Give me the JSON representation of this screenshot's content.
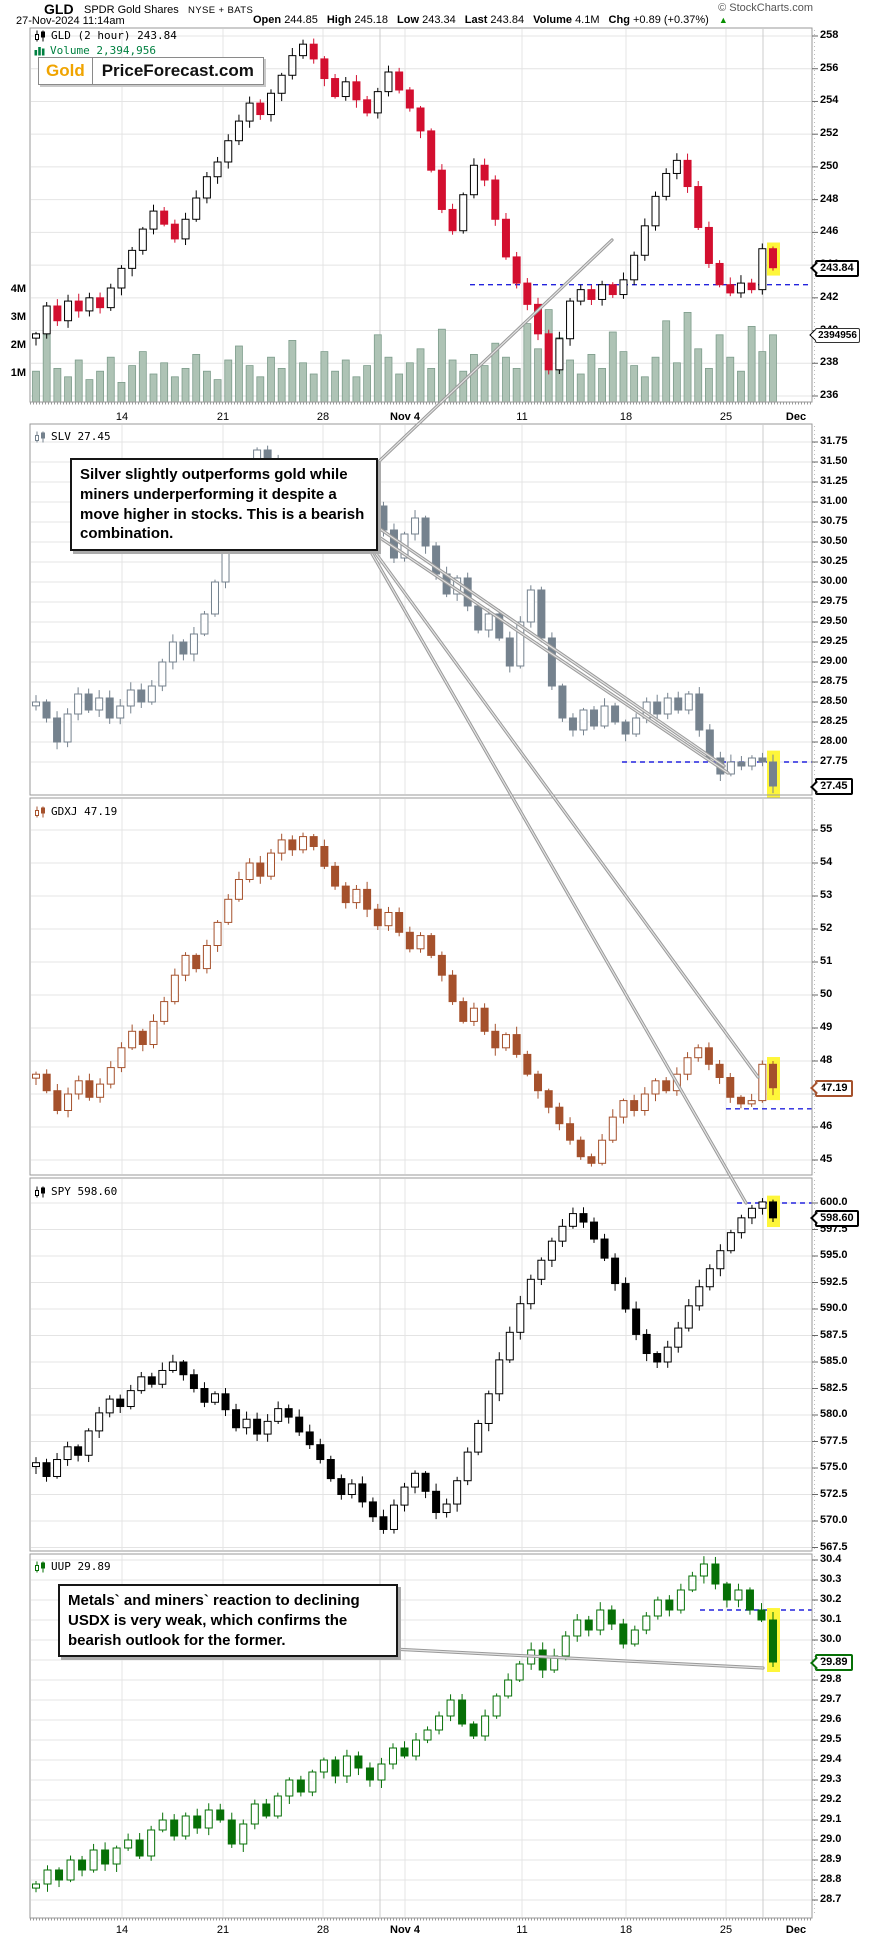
{
  "header": {
    "symbol": "GLD",
    "name": "SPDR Gold Shares",
    "exchange": "NYSE + BATS",
    "copyright": "© StockCharts.com",
    "datetime": "27-Nov-2024 11:14am",
    "quote": [
      {
        "label": "Open",
        "value": "244.85"
      },
      {
        "label": "High",
        "value": "245.18"
      },
      {
        "label": "Low",
        "value": "243.34"
      },
      {
        "label": "Last",
        "value": "243.84"
      },
      {
        "label": "Volume",
        "value": "4.1M"
      },
      {
        "label": "Chg",
        "value": "+0.89 (+0.37%)"
      }
    ],
    "chg_direction": "▲",
    "up_color": "#089000"
  },
  "logo": {
    "word1": "Gold",
    "word2": "PriceForecast.com",
    "word1_color": "#f0a400"
  },
  "annotations": {
    "box1": "Silver slightly outperforms gold while miners underperforming it despite a move higher in stocks. This is a bearish combination.",
    "box2": "Metals` and miners` reaction to declining USDX is very weak, which confirms the bearish outlook for the former."
  },
  "x_axis_labels": [
    "14",
    "21",
    "28",
    "Nov 4",
    "11",
    "18",
    "25",
    "Dec"
  ],
  "chart_data": [
    {
      "type": "candlestick",
      "symbol": "GLD",
      "timeframe": "2 hour",
      "legend": "GLD (2 hour) 243.84",
      "volume_legend": "Volume 2,394,956",
      "last": 243.84,
      "price_label": "243.84",
      "volume_label": "2394956",
      "ylim": [
        236,
        258
      ],
      "yticks": [
        "258",
        "256",
        "254",
        "252",
        "250",
        "248",
        "246",
        "244",
        "242",
        "240",
        "238",
        "236"
      ],
      "volume_ticks": [
        "4M",
        "3M",
        "2M",
        "1M"
      ],
      "dashed_level": 242.8,
      "color_up": "#000000",
      "color_down": "#d30f2f",
      "volume_bar_fill": "#aec3b5",
      "volume_bar_border": "#7d9c8b",
      "closes": [
        239.8,
        241.5,
        240.6,
        241.8,
        241.2,
        242.0,
        241.4,
        242.6,
        243.8,
        244.9,
        246.2,
        247.3,
        246.5,
        245.6,
        246.8,
        248.1,
        249.4,
        250.3,
        251.6,
        252.8,
        253.9,
        253.2,
        254.5,
        255.6,
        256.8,
        257.5,
        256.6,
        255.4,
        254.3,
        255.2,
        254.1,
        253.3,
        254.6,
        255.8,
        254.7,
        253.6,
        252.2,
        249.8,
        247.4,
        246.1,
        248.3,
        250.1,
        249.2,
        246.8,
        244.5,
        242.9,
        241.6,
        239.8,
        237.6,
        239.5,
        241.8,
        242.5,
        241.9,
        242.8,
        242.2,
        243.1,
        244.6,
        246.4,
        248.2,
        249.6,
        250.4,
        248.8,
        246.3,
        244.1,
        242.8,
        242.3,
        242.9,
        242.5,
        245.0,
        243.84
      ],
      "volumes_m": [
        1.1,
        2.4,
        1.2,
        0.9,
        1.5,
        0.8,
        1.1,
        1.6,
        0.7,
        1.3,
        1.8,
        1.0,
        1.4,
        0.9,
        1.2,
        1.7,
        1.1,
        0.8,
        1.5,
        2.0,
        1.3,
        0.9,
        1.6,
        1.2,
        2.2,
        1.4,
        1.0,
        1.8,
        1.1,
        1.5,
        0.9,
        1.3,
        2.4,
        1.6,
        1.0,
        1.4,
        1.9,
        1.2,
        2.6,
        1.5,
        1.1,
        1.7,
        1.3,
        2.1,
        1.6,
        1.2,
        2.8,
        1.9,
        3.3,
        2.3,
        1.5,
        1.0,
        1.7,
        1.2,
        2.5,
        1.8,
        1.3,
        0.9,
        1.6,
        2.9,
        1.4,
        3.2,
        1.9,
        1.2,
        2.4,
        1.6,
        1.1,
        2.7,
        1.8,
        2.4
      ]
    },
    {
      "type": "candlestick",
      "symbol": "SLV",
      "legend": "SLV 27.45",
      "last": 27.45,
      "price_label": "27.45",
      "ylim": [
        27.45,
        31.75
      ],
      "yticks": [
        "31.75",
        "31.50",
        "31.25",
        "31.00",
        "30.75",
        "30.50",
        "30.25",
        "30.00",
        "29.75",
        "29.50",
        "29.25",
        "29.00",
        "28.75",
        "28.50",
        "28.25",
        "28.00",
        "27.75"
      ],
      "dashed_level": 27.75,
      "color_up": "#75828e",
      "color_down": "#75828e",
      "closes": [
        28.5,
        28.3,
        28.0,
        28.35,
        28.6,
        28.4,
        28.55,
        28.3,
        28.45,
        28.65,
        28.5,
        28.7,
        29.0,
        29.25,
        29.1,
        29.35,
        29.6,
        30.0,
        30.55,
        31.1,
        31.45,
        31.65,
        31.35,
        31.5,
        31.2,
        30.85,
        30.6,
        30.9,
        31.1,
        30.8,
        31.05,
        31.25,
        30.95,
        30.65,
        30.3,
        30.6,
        30.8,
        30.45,
        30.1,
        29.85,
        30.05,
        29.7,
        29.4,
        29.6,
        29.3,
        28.95,
        29.5,
        29.9,
        29.3,
        28.7,
        28.3,
        28.15,
        28.4,
        28.2,
        28.45,
        28.25,
        28.1,
        28.3,
        28.5,
        28.35,
        28.55,
        28.4,
        28.6,
        28.15,
        27.8,
        27.6,
        27.75,
        27.7,
        27.8,
        27.75,
        27.45
      ]
    },
    {
      "type": "candlestick",
      "symbol": "GDXJ",
      "legend": "GDXJ 47.19",
      "last": 47.19,
      "price_label": "47.19",
      "ylim": [
        45,
        55
      ],
      "yticks": [
        "55",
        "54",
        "53",
        "52",
        "51",
        "50",
        "49",
        "48",
        "47",
        "46",
        "45"
      ],
      "dashed_level": 46.55,
      "color_up": "#a5512c",
      "color_down": "#a5512c",
      "closes": [
        47.6,
        47.1,
        46.5,
        47.0,
        47.4,
        46.9,
        47.3,
        47.8,
        48.4,
        48.9,
        48.5,
        49.2,
        49.8,
        50.6,
        51.2,
        50.8,
        51.5,
        52.2,
        52.9,
        53.5,
        54.0,
        53.6,
        54.3,
        54.7,
        54.4,
        54.8,
        54.5,
        53.9,
        53.3,
        52.8,
        53.2,
        52.6,
        52.1,
        52.5,
        51.9,
        51.4,
        51.8,
        51.2,
        50.6,
        49.8,
        49.2,
        49.6,
        48.9,
        48.4,
        48.8,
        48.2,
        47.6,
        47.1,
        46.6,
        46.1,
        45.6,
        45.1,
        44.9,
        45.6,
        46.3,
        46.8,
        46.5,
        47.0,
        47.4,
        47.1,
        47.6,
        48.1,
        48.4,
        47.9,
        47.5,
        46.9,
        46.7,
        46.8,
        47.9,
        47.19
      ]
    },
    {
      "type": "candlestick",
      "symbol": "SPY",
      "legend": "SPY 598.60",
      "last": 598.6,
      "price_label": "598.60",
      "ylim": [
        567.5,
        600
      ],
      "yticks": [
        "600.0",
        "597.5",
        "595.0",
        "592.5",
        "590.0",
        "587.5",
        "585.0",
        "582.5",
        "580.0",
        "577.5",
        "575.0",
        "572.5",
        "570.0",
        "567.5"
      ],
      "dashed_level": 600.0,
      "color_up": "#000000",
      "color_down": "#000000",
      "closes": [
        575.5,
        574.2,
        575.8,
        577.0,
        576.2,
        578.5,
        580.2,
        581.5,
        580.8,
        582.3,
        583.6,
        582.9,
        584.2,
        585.0,
        583.8,
        582.5,
        581.2,
        582.0,
        580.5,
        578.8,
        579.6,
        578.2,
        579.4,
        580.6,
        579.8,
        578.4,
        577.2,
        575.8,
        574.0,
        572.5,
        573.5,
        571.8,
        570.4,
        569.2,
        571.5,
        573.2,
        574.5,
        572.8,
        570.8,
        571.6,
        573.8,
        576.5,
        579.2,
        582.0,
        585.2,
        587.8,
        590.5,
        592.8,
        594.6,
        596.4,
        597.8,
        599.0,
        598.2,
        596.6,
        594.8,
        592.4,
        590.0,
        587.6,
        585.8,
        585.0,
        586.4,
        588.2,
        590.3,
        592.1,
        593.8,
        595.5,
        597.2,
        598.6,
        599.5,
        600.1,
        598.6
      ]
    },
    {
      "type": "candlestick",
      "symbol": "UUP",
      "legend": "UUP 29.89",
      "last": 29.89,
      "price_label": "29.89",
      "ylim": [
        28.7,
        30.4
      ],
      "yticks": [
        "30.4",
        "30.3",
        "30.2",
        "30.1",
        "30.0",
        "29.9",
        "29.8",
        "29.7",
        "29.6",
        "29.5",
        "29.4",
        "29.3",
        "29.2",
        "29.1",
        "29.0",
        "28.9",
        "28.8",
        "28.7"
      ],
      "dashed_level": 30.15,
      "color_up": "#067006",
      "color_down": "#067006",
      "closes": [
        28.78,
        28.85,
        28.8,
        28.9,
        28.85,
        28.95,
        28.88,
        28.96,
        29.0,
        28.92,
        29.05,
        29.1,
        29.02,
        29.12,
        29.06,
        29.15,
        29.1,
        28.98,
        29.08,
        29.18,
        29.12,
        29.22,
        29.3,
        29.24,
        29.34,
        29.4,
        29.32,
        29.42,
        29.36,
        29.3,
        29.38,
        29.46,
        29.42,
        29.5,
        29.55,
        29.62,
        29.7,
        29.58,
        29.52,
        29.62,
        29.72,
        29.8,
        29.88,
        29.95,
        29.85,
        29.92,
        30.02,
        30.1,
        30.05,
        30.15,
        30.08,
        29.98,
        30.05,
        30.12,
        30.2,
        30.15,
        30.25,
        30.32,
        30.38,
        30.28,
        30.2,
        30.25,
        30.15,
        30.1,
        29.89
      ]
    }
  ]
}
